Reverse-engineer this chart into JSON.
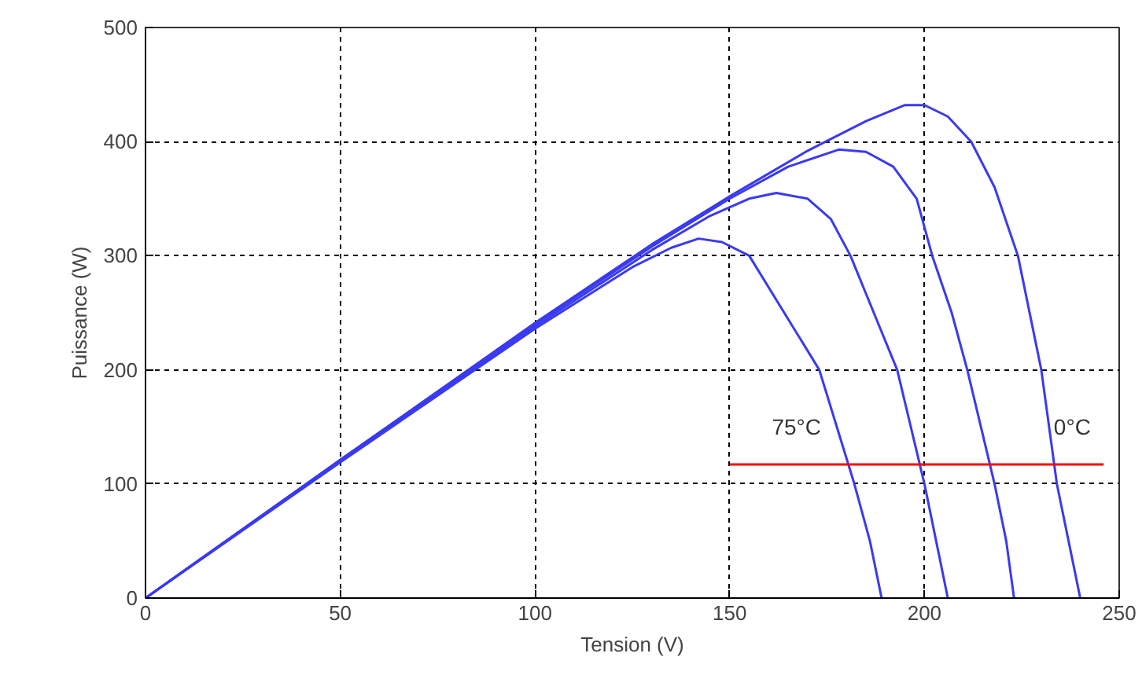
{
  "chart_data": {
    "type": "line",
    "xlabel": "Tension (V)",
    "ylabel": "Puissance (W)",
    "xlim": [
      0,
      250
    ],
    "ylim": [
      0,
      500
    ],
    "xticks": [
      0,
      50,
      100,
      150,
      200,
      250
    ],
    "yticks": [
      0,
      100,
      200,
      300,
      400,
      500
    ],
    "grid": true,
    "series": [
      {
        "name": "0°C",
        "color": "#3a3af0",
        "x": [
          0,
          50,
          100,
          130,
          150,
          170,
          185,
          195,
          200,
          206,
          212,
          218,
          224,
          230,
          234,
          237,
          240
        ],
        "values": [
          0,
          121,
          241,
          310,
          352,
          392,
          418,
          432,
          432,
          422,
          400,
          360,
          300,
          200,
          100,
          50,
          0
        ]
      },
      {
        "color": "#3a3af0",
        "x": [
          0,
          50,
          100,
          130,
          150,
          165,
          178,
          185,
          192,
          198,
          202,
          207,
          211,
          218,
          221,
          223
        ],
        "values": [
          0,
          121,
          240,
          308,
          350,
          378,
          393,
          391,
          378,
          350,
          300,
          250,
          200,
          100,
          50,
          0
        ]
      },
      {
        "color": "#3a3af0",
        "x": [
          0,
          50,
          100,
          130,
          145,
          155,
          162,
          170,
          176,
          181,
          187,
          193,
          200,
          203,
          206
        ],
        "values": [
          0,
          120,
          238,
          305,
          335,
          350,
          355,
          350,
          332,
          300,
          250,
          200,
          100,
          50,
          0
        ]
      },
      {
        "name": "75°C",
        "color": "#3a3af0",
        "x": [
          0,
          50,
          100,
          125,
          135,
          142,
          148,
          155,
          164,
          173,
          182,
          186,
          189
        ],
        "values": [
          0,
          119,
          236,
          290,
          307,
          315,
          312,
          300,
          250,
          200,
          100,
          50,
          0
        ]
      },
      {
        "color": "#ff0000",
        "x": [
          246,
          150
        ],
        "values": [
          117,
          117
        ]
      }
    ]
  }
}
